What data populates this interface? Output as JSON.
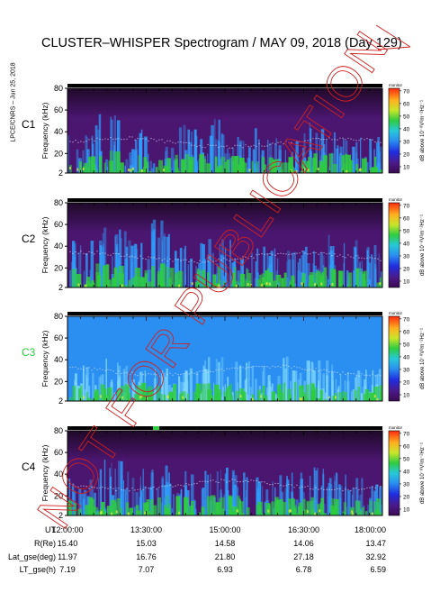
{
  "header": {
    "title": "CLUSTER–WHISPER Spectrogram / MAY 09, 2018 (Day 129)",
    "side_note": "LPCE/CNRS – Jun 25, 2018"
  },
  "watermark": {
    "text": "NOT FOR PUBLICATION",
    "color": "#d02020"
  },
  "chart_data": {
    "type": "heatmap",
    "ylabel": "Frequency (kHz)",
    "y_ticks": [
      2,
      20,
      40,
      60,
      80
    ],
    "ylim": [
      2,
      80
    ],
    "x_ticks": [
      "12:00:00",
      "13:30:00",
      "15:00:00",
      "16:30:00",
      "18:00:00"
    ],
    "colorbar": {
      "label": "dB above 10⁻⁸V²m⁻²Hz⁻¹",
      "ticks": [
        10,
        20,
        30,
        40,
        50,
        60,
        70
      ],
      "range": [
        5,
        72
      ],
      "small_label": "monitor"
    },
    "panels": [
      {
        "name": "C1",
        "label_color": "#000000",
        "background": "#4a1670",
        "emission_color": "#2ea0ff",
        "low_color": "#2ecc40",
        "activity": [
          0.45,
          0.7,
          0.5,
          0.3,
          0.6,
          0.65,
          0.4,
          0.55,
          0.35,
          0.6,
          0.5,
          0.4
        ]
      },
      {
        "name": "C2",
        "label_color": "#000000",
        "background": "#4a1670",
        "emission_color": "#2ea0ff",
        "low_color": "#2ecc40",
        "activity": [
          0.55,
          0.75,
          0.65,
          0.8,
          0.5,
          0.6,
          0.55,
          0.5,
          0.45,
          0.6,
          0.55,
          0.5
        ]
      },
      {
        "name": "C3",
        "label_color": "#2ecc40",
        "background": "#2a8ff0",
        "emission_color": "#7fd8ff",
        "low_color": "#2ecc40",
        "activity": [
          0.4,
          0.5,
          0.45,
          0.35,
          0.4,
          0.5,
          0.45,
          0.4,
          0.5,
          0.45,
          0.4,
          0.35
        ]
      },
      {
        "name": "C4",
        "label_color": "#000000",
        "background": "#4a1670",
        "emission_color": "#2ea0ff",
        "low_color": "#2ecc40",
        "activity": [
          0.5,
          0.65,
          0.55,
          0.6,
          0.5,
          0.55,
          0.6,
          0.45,
          0.5,
          0.55,
          0.5,
          0.45
        ]
      }
    ],
    "ephemeris": {
      "rows": [
        {
          "label": "UT",
          "values": [
            "12:00:00",
            "13:30:00",
            "15:00:00",
            "16:30:00",
            "18:00:00"
          ]
        },
        {
          "label": "R(Re)",
          "values": [
            "15.40",
            "15.03",
            "14.58",
            "14.06",
            "13.47"
          ]
        },
        {
          "label": "Lat_gse(deg)",
          "values": [
            "11.97",
            "16.76",
            "21.80",
            "27.18",
            "32.92"
          ]
        },
        {
          "label": "LT_gse(h)",
          "values": [
            "7.19",
            "7.07",
            "6.93",
            "6.78",
            "6.59"
          ]
        }
      ]
    }
  }
}
